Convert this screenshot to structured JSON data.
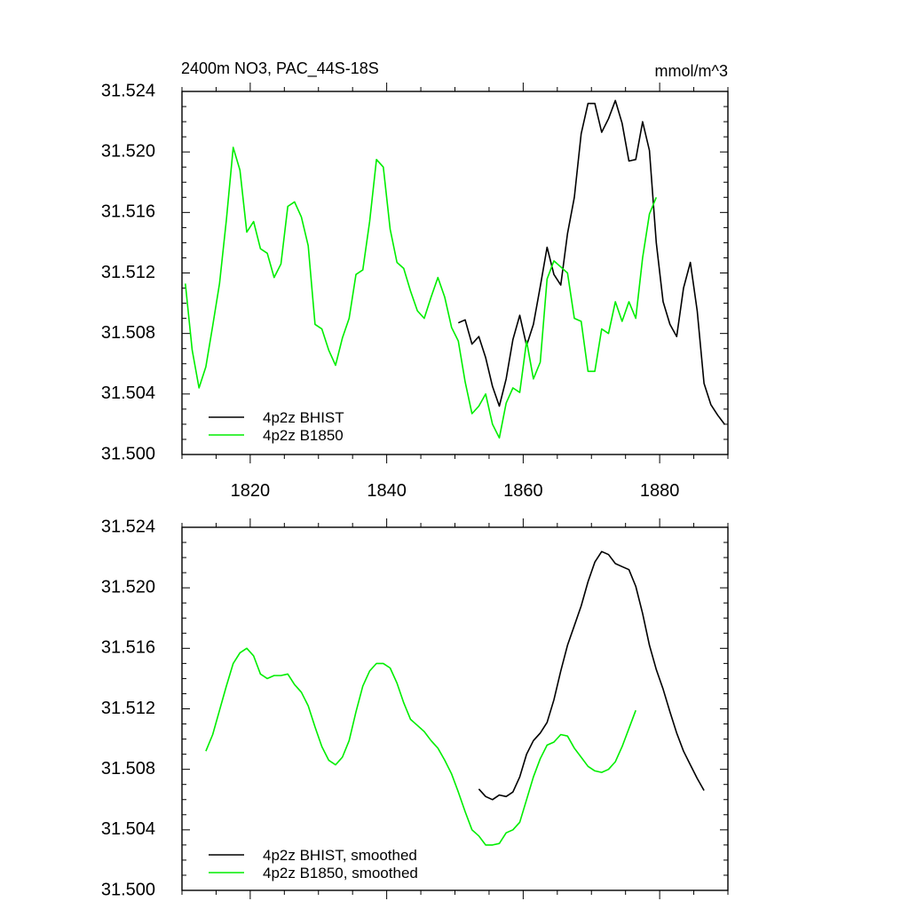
{
  "chart_data": [
    {
      "type": "line",
      "title": "2400m NO3, PAC_44S-18S",
      "units": "mmol/m^3",
      "xlim": [
        1810,
        1890
      ],
      "ylim": [
        31.5,
        31.524
      ],
      "xticks": [
        1820,
        1840,
        1860,
        1880
      ],
      "yticks": [
        "31.500",
        "31.504",
        "31.508",
        "31.512",
        "31.516",
        "31.520",
        "31.524"
      ],
      "legend": "bottom-left",
      "series": [
        {
          "name": "4p2z BHIST",
          "color": "#000000",
          "x": [
            1850.5,
            1851.5,
            1852.5,
            1853.5,
            1854.5,
            1855.5,
            1856.5,
            1857.5,
            1858.5,
            1859.5,
            1860.5,
            1861.5,
            1862.5,
            1863.5,
            1864.5,
            1865.5,
            1866.5,
            1867.5,
            1868.5,
            1869.5,
            1870.5,
            1871.5,
            1872.5,
            1873.5,
            1874.5,
            1875.5,
            1876.5,
            1877.5,
            1878.5,
            1879.5,
            1880.5,
            1881.5,
            1882.5,
            1883.5,
            1884.5,
            1885.5,
            1886.5,
            1887.5,
            1888.5,
            1889.5
          ],
          "y": [
            31.5087,
            31.5089,
            31.5073,
            31.5078,
            31.5064,
            31.5045,
            31.5032,
            31.505,
            31.5076,
            31.5092,
            31.5072,
            31.5086,
            31.5111,
            31.5137,
            31.5119,
            31.5112,
            31.5146,
            31.517,
            31.5212,
            31.5232,
            31.5232,
            31.5213,
            31.5222,
            31.5234,
            31.5219,
            31.5194,
            31.5195,
            31.522,
            31.5201,
            31.514,
            31.5101,
            31.5086,
            31.5078,
            31.511,
            31.5127,
            31.5095,
            31.5047,
            31.5033,
            31.5026,
            31.502
          ]
        },
        {
          "name": "4p2z B1850",
          "color": "#00ee00",
          "x": [
            1810.5,
            1811.5,
            1812.5,
            1813.5,
            1814.5,
            1815.5,
            1816.5,
            1817.5,
            1818.5,
            1819.5,
            1820.5,
            1821.5,
            1822.5,
            1823.5,
            1824.5,
            1825.5,
            1826.5,
            1827.5,
            1828.5,
            1829.5,
            1830.5,
            1831.5,
            1832.5,
            1833.5,
            1834.5,
            1835.5,
            1836.5,
            1837.5,
            1838.5,
            1839.5,
            1840.5,
            1841.5,
            1842.5,
            1843.5,
            1844.5,
            1845.5,
            1846.5,
            1847.5,
            1848.5,
            1849.5,
            1850.5,
            1851.5,
            1852.5,
            1853.5,
            1854.5,
            1855.5,
            1856.5,
            1857.5,
            1858.5,
            1859.5,
            1860.5,
            1861.5,
            1862.5,
            1863.5,
            1864.5,
            1865.5,
            1866.5,
            1867.5,
            1868.5,
            1869.5,
            1870.5,
            1871.5,
            1872.5,
            1873.5,
            1874.5,
            1875.5,
            1876.5,
            1877.5,
            1878.5,
            1879.5
          ],
          "y": [
            31.5113,
            31.5069,
            31.5044,
            31.5058,
            31.5085,
            31.5113,
            31.5155,
            31.5203,
            31.5188,
            31.5147,
            31.5154,
            31.5136,
            31.5133,
            31.5117,
            31.5126,
            31.5164,
            31.5167,
            31.5157,
            31.5138,
            31.5086,
            31.5083,
            31.5069,
            31.5059,
            31.5077,
            31.509,
            31.5119,
            31.5122,
            31.5154,
            31.5195,
            31.519,
            31.5149,
            31.5127,
            31.5123,
            31.5108,
            31.5095,
            31.509,
            31.5104,
            31.5117,
            31.5104,
            31.5084,
            31.5075,
            31.5048,
            31.5027,
            31.5032,
            31.504,
            31.502,
            31.5011,
            31.5034,
            31.5044,
            31.5041,
            31.5075,
            31.505,
            31.5061,
            31.5116,
            31.5128,
            31.5124,
            31.512,
            31.509,
            31.5088,
            31.5055,
            31.5055,
            31.5083,
            31.508,
            31.5101,
            31.5088,
            31.5101,
            31.509,
            31.513,
            31.5159,
            31.517
          ]
        }
      ]
    },
    {
      "type": "line",
      "title": "",
      "xlim": [
        1810,
        1890
      ],
      "ylim": [
        31.5,
        31.524
      ],
      "yticks": [
        "31.500",
        "31.504",
        "31.508",
        "31.512",
        "31.516",
        "31.520",
        "31.524"
      ],
      "legend": "bottom-left",
      "series": [
        {
          "name": "4p2z BHIST, smoothed",
          "color": "#000000",
          "x": [
            1853.5,
            1854.5,
            1855.5,
            1856.5,
            1857.5,
            1858.5,
            1859.5,
            1860.5,
            1861.5,
            1862.5,
            1863.5,
            1864.5,
            1865.5,
            1866.5,
            1867.5,
            1868.5,
            1869.5,
            1870.5,
            1871.5,
            1872.5,
            1873.5,
            1874.5,
            1875.5,
            1876.5,
            1877.5,
            1878.5,
            1879.5,
            1880.5,
            1881.5,
            1882.5,
            1883.5,
            1884.5,
            1885.5,
            1886.5
          ],
          "y": [
            31.5067,
            31.5062,
            31.506,
            31.5063,
            31.5062,
            31.5065,
            31.5075,
            31.509,
            31.5099,
            31.5104,
            31.5111,
            31.5126,
            31.5145,
            31.5162,
            31.5175,
            31.5188,
            31.5204,
            31.5217,
            31.5224,
            31.5222,
            31.5216,
            31.5214,
            31.5212,
            31.5201,
            31.5183,
            31.5162,
            31.5146,
            31.5133,
            31.5118,
            31.5104,
            31.5092,
            31.5083,
            31.5074,
            31.5066
          ]
        },
        {
          "name": "4p2z B1850, smoothed",
          "color": "#00ee00",
          "x": [
            1813.5,
            1814.5,
            1815.5,
            1816.5,
            1817.5,
            1818.5,
            1819.5,
            1820.5,
            1821.5,
            1822.5,
            1823.5,
            1824.5,
            1825.5,
            1826.5,
            1827.5,
            1828.5,
            1829.5,
            1830.5,
            1831.5,
            1832.5,
            1833.5,
            1834.5,
            1835.5,
            1836.5,
            1837.5,
            1838.5,
            1839.5,
            1840.5,
            1841.5,
            1842.5,
            1843.5,
            1844.5,
            1845.5,
            1846.5,
            1847.5,
            1848.5,
            1849.5,
            1850.5,
            1851.5,
            1852.5,
            1853.5,
            1854.5,
            1855.5,
            1856.5,
            1857.5,
            1858.5,
            1859.5,
            1860.5,
            1861.5,
            1862.5,
            1863.5,
            1864.5,
            1865.5,
            1866.5,
            1867.5,
            1868.5,
            1869.5,
            1870.5,
            1871.5,
            1872.5,
            1873.5,
            1874.5,
            1875.5,
            1876.5
          ],
          "y": [
            31.5092,
            31.5103,
            31.5119,
            31.5135,
            31.515,
            31.5157,
            31.516,
            31.5155,
            31.5143,
            31.514,
            31.5142,
            31.5142,
            31.5143,
            31.5136,
            31.5131,
            31.5122,
            31.5108,
            31.5095,
            31.5086,
            31.5083,
            31.5088,
            31.5099,
            31.5118,
            31.5135,
            31.5145,
            31.515,
            31.515,
            31.5147,
            31.5137,
            31.5124,
            31.5113,
            31.5109,
            31.5105,
            31.5099,
            31.5094,
            31.5086,
            31.5077,
            31.5065,
            31.5052,
            31.504,
            31.5036,
            31.503,
            31.503,
            31.5031,
            31.5038,
            31.504,
            31.5045,
            31.506,
            31.5075,
            31.5087,
            31.5096,
            31.5098,
            31.5103,
            31.5102,
            31.5094,
            31.5088,
            31.5082,
            31.5079,
            31.5078,
            31.508,
            31.5085,
            31.5095,
            31.5107,
            31.5119
          ]
        }
      ]
    }
  ]
}
